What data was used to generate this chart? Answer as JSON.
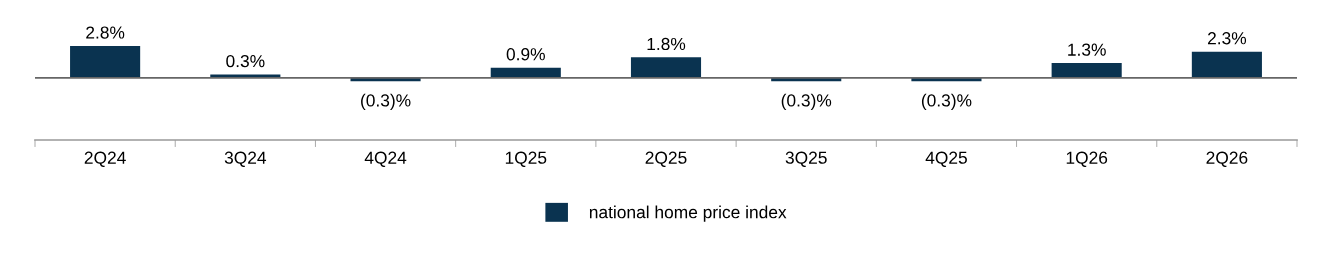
{
  "chart_data": {
    "type": "bar",
    "categories": [
      "2Q24",
      "3Q24",
      "4Q24",
      "1Q25",
      "2Q25",
      "3Q25",
      "4Q25",
      "1Q26",
      "2Q26"
    ],
    "series": [
      {
        "name": "national home price index",
        "color": "#0a3350",
        "values": [
          2.8,
          0.3,
          -0.3,
          0.9,
          1.8,
          -0.3,
          -0.3,
          1.3,
          2.3
        ],
        "value_labels": [
          "2.8%",
          "0.3%",
          "(0.3)%",
          "0.9%",
          "1.8%",
          "(0.3)%",
          "(0.3)%",
          "1.3%",
          "2.3%"
        ]
      }
    ],
    "legend": "bottom",
    "grid": false
  }
}
